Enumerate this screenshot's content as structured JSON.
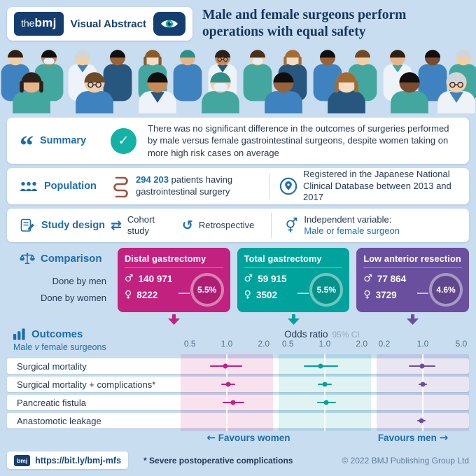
{
  "header": {
    "brand_the": "the",
    "brand_bmj": "bmj",
    "brand_sub": "Visual Abstract",
    "title": "Male and female surgeons perform\noperations with equal safety"
  },
  "summary": {
    "label": "Summary",
    "text": "There was no significant difference in the outcomes of surgeries performed by male versus female gastrointestinal surgeons, despite women taking on more high risk cases on average"
  },
  "population": {
    "label": "Population",
    "patients_count": "294 203",
    "patients_text": "patients having gastrointestinal surgery",
    "registry_text": "Registered in the Japanese National Clinical Database between 2013 and 2017"
  },
  "study_design": {
    "label": "Study design",
    "cohort": "Cohort study",
    "retrospective": "Retrospective",
    "independent_label": "Independent variable:",
    "independent_value": "Male or female surgeon"
  },
  "comparison": {
    "label": "Comparison",
    "row_men": "Done by men",
    "row_women": "Done by women",
    "groups": [
      {
        "name": "Distal gastrectomy",
        "men": "140 971",
        "women": "8222",
        "pct": "5.5%",
        "color": "#c2217f"
      },
      {
        "name": "Total gastrectomy",
        "men": "59 915",
        "women": "3502",
        "pct": "5.5%",
        "color": "#00a39b"
      },
      {
        "name": "Low anterior resection",
        "men": "77 864",
        "women": "3729",
        "pct": "4.6%",
        "color": "#6a4f9e"
      }
    ]
  },
  "outcomes": {
    "label": "Outcomes",
    "sub_pre": "Male ",
    "sub_v": "v",
    "sub_post": " female surgeons",
    "axis_title": "Odds ratio",
    "ci_label": "95% CI"
  },
  "chart_data": {
    "type": "scatter",
    "subtype": "forest-plot",
    "title": "Odds ratio",
    "ci_label": "95% CI",
    "scale": "log",
    "grid": "reference line at OR = 1.0 per panel",
    "row_labels": [
      "Surgical mortality",
      "Surgical mortality + complications*",
      "Pancreatic fistula",
      "Anastomotic leakage"
    ],
    "favours_left": "Favours women",
    "favours_right": "Favours men",
    "panels": [
      {
        "name": "Distal gastrectomy",
        "color": "#c2217f",
        "tint": "rgba(194,33,127,0.13)",
        "xlim": [
          0.42,
          2.38
        ],
        "ticks": [
          "0.5",
          "1.0",
          "2.0"
        ],
        "points": [
          {
            "row": 0,
            "label": "Surgical mortality",
            "or": 0.97,
            "lo": 0.73,
            "hi": 1.33
          },
          {
            "row": 1,
            "label": "Surgical mortality + complications*",
            "or": 1.02,
            "lo": 0.9,
            "hi": 1.17
          },
          {
            "row": 2,
            "label": "Pancreatic fistula",
            "or": 1.12,
            "lo": 0.93,
            "hi": 1.38
          }
        ]
      },
      {
        "name": "Total gastrectomy",
        "color": "#00a39b",
        "tint": "rgba(0,163,155,0.13)",
        "xlim": [
          0.42,
          2.38
        ],
        "ticks": [
          "0.5",
          "1.0",
          "2.0"
        ],
        "points": [
          {
            "row": 0,
            "label": "Surgical mortality",
            "or": 0.93,
            "lo": 0.67,
            "hi": 1.28
          },
          {
            "row": 1,
            "label": "Surgical mortality + complications*",
            "or": 1.0,
            "lo": 0.88,
            "hi": 1.14
          },
          {
            "row": 2,
            "label": "Pancreatic fistula",
            "or": 1.02,
            "lo": 0.86,
            "hi": 1.24
          }
        ]
      },
      {
        "name": "Low anterior resection",
        "color": "#6a4f9e",
        "tint": "rgba(106,79,158,0.14)",
        "xlim": [
          0.145,
          6.9
        ],
        "ticks": [
          "0.2",
          "1.0",
          "5.0"
        ],
        "points": [
          {
            "row": 0,
            "label": "Surgical mortality",
            "or": 0.97,
            "lo": 0.55,
            "hi": 1.7
          },
          {
            "row": 1,
            "label": "Surgical mortality + complications*",
            "or": 1.0,
            "lo": 0.85,
            "hi": 1.18
          },
          {
            "row": 3,
            "label": "Anastomotic leakage",
            "or": 0.94,
            "lo": 0.78,
            "hi": 1.12
          }
        ]
      }
    ]
  },
  "footer": {
    "logo": "bmj",
    "url": "https://bit.ly/bmj-mfs",
    "footnote": "* Severe postoperative complications",
    "copyright": "© 2022 BMJ Publishing Group Ltd"
  },
  "icons": {
    "quote": "“",
    "check": "✓",
    "male": "♂",
    "female": "♀",
    "exchange": "⇄",
    "retrospective": "↺",
    "arrow_left": "←",
    "arrow_right": "→"
  }
}
